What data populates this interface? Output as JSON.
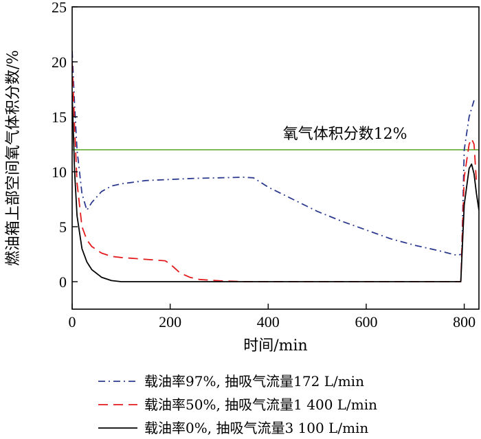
{
  "chart_data": {
    "type": "line",
    "xlabel": "时间/min",
    "ylabel": "燃油箱上部空间氧气体积分数/%",
    "xlim": [
      0,
      830
    ],
    "ylim": [
      -2.5,
      25
    ],
    "xticks": [
      0,
      200,
      400,
      600,
      800
    ],
    "yticks": [
      0,
      5,
      10,
      15,
      20,
      25
    ],
    "grid": false,
    "legend_position": "bottom",
    "annotations": [
      {
        "text": "氧气体积分数12%",
        "x": 430,
        "y": 12.5
      }
    ],
    "reference_lines": [
      {
        "y": 12,
        "color": "#6db33f"
      }
    ],
    "series": [
      {
        "name": "载油率97%, 抽吸气流量172  L/min",
        "style": "dashdot",
        "color": "#2b3a8f",
        "points": [
          [
            0,
            21
          ],
          [
            5,
            16
          ],
          [
            10,
            12
          ],
          [
            20,
            8
          ],
          [
            30,
            6.5
          ],
          [
            40,
            7.2
          ],
          [
            60,
            8.2
          ],
          [
            80,
            8.7
          ],
          [
            100,
            8.9
          ],
          [
            150,
            9.2
          ],
          [
            200,
            9.3
          ],
          [
            250,
            9.4
          ],
          [
            300,
            9.45
          ],
          [
            350,
            9.5
          ],
          [
            370,
            9.45
          ],
          [
            400,
            8.6
          ],
          [
            450,
            7.5
          ],
          [
            500,
            6.4
          ],
          [
            550,
            5.5
          ],
          [
            600,
            4.7
          ],
          [
            650,
            3.9
          ],
          [
            700,
            3.3
          ],
          [
            750,
            2.8
          ],
          [
            785,
            2.4
          ],
          [
            795,
            2.5
          ],
          [
            800,
            12
          ],
          [
            810,
            15
          ],
          [
            820,
            16.5
          ]
        ]
      },
      {
        "name": "载油率50%, 抽吸气流量1 400  L/min",
        "style": "dashed",
        "color": "#e41a1c",
        "points": [
          [
            0,
            20
          ],
          [
            5,
            14
          ],
          [
            10,
            9
          ],
          [
            20,
            5
          ],
          [
            30,
            3.8
          ],
          [
            40,
            3.2
          ],
          [
            60,
            2.6
          ],
          [
            80,
            2.3
          ],
          [
            100,
            2.2
          ],
          [
            130,
            2.1
          ],
          [
            160,
            2.0
          ],
          [
            190,
            1.9
          ],
          [
            200,
            1.6
          ],
          [
            220,
            0.8
          ],
          [
            240,
            0.4
          ],
          [
            260,
            0.2
          ],
          [
            300,
            0.08
          ],
          [
            350,
            0
          ],
          [
            400,
            0
          ],
          [
            600,
            0
          ],
          [
            793,
            0
          ],
          [
            800,
            9.5
          ],
          [
            810,
            12.5
          ],
          [
            815,
            13
          ],
          [
            820,
            12.5
          ],
          [
            825,
            9
          ]
        ]
      },
      {
        "name": "载油率0%, 抽吸气流量3 100  L/min",
        "style": "solid",
        "color": "#000000",
        "points": [
          [
            0,
            17
          ],
          [
            5,
            10
          ],
          [
            10,
            6
          ],
          [
            20,
            3
          ],
          [
            30,
            1.8
          ],
          [
            40,
            1.1
          ],
          [
            60,
            0.4
          ],
          [
            80,
            0.1
          ],
          [
            100,
            0
          ],
          [
            200,
            0
          ],
          [
            400,
            0
          ],
          [
            600,
            0
          ],
          [
            793,
            0
          ],
          [
            800,
            7
          ],
          [
            810,
            10.3
          ],
          [
            815,
            10.7
          ],
          [
            820,
            9.8
          ],
          [
            825,
            8
          ],
          [
            830,
            6.5
          ]
        ]
      }
    ]
  }
}
